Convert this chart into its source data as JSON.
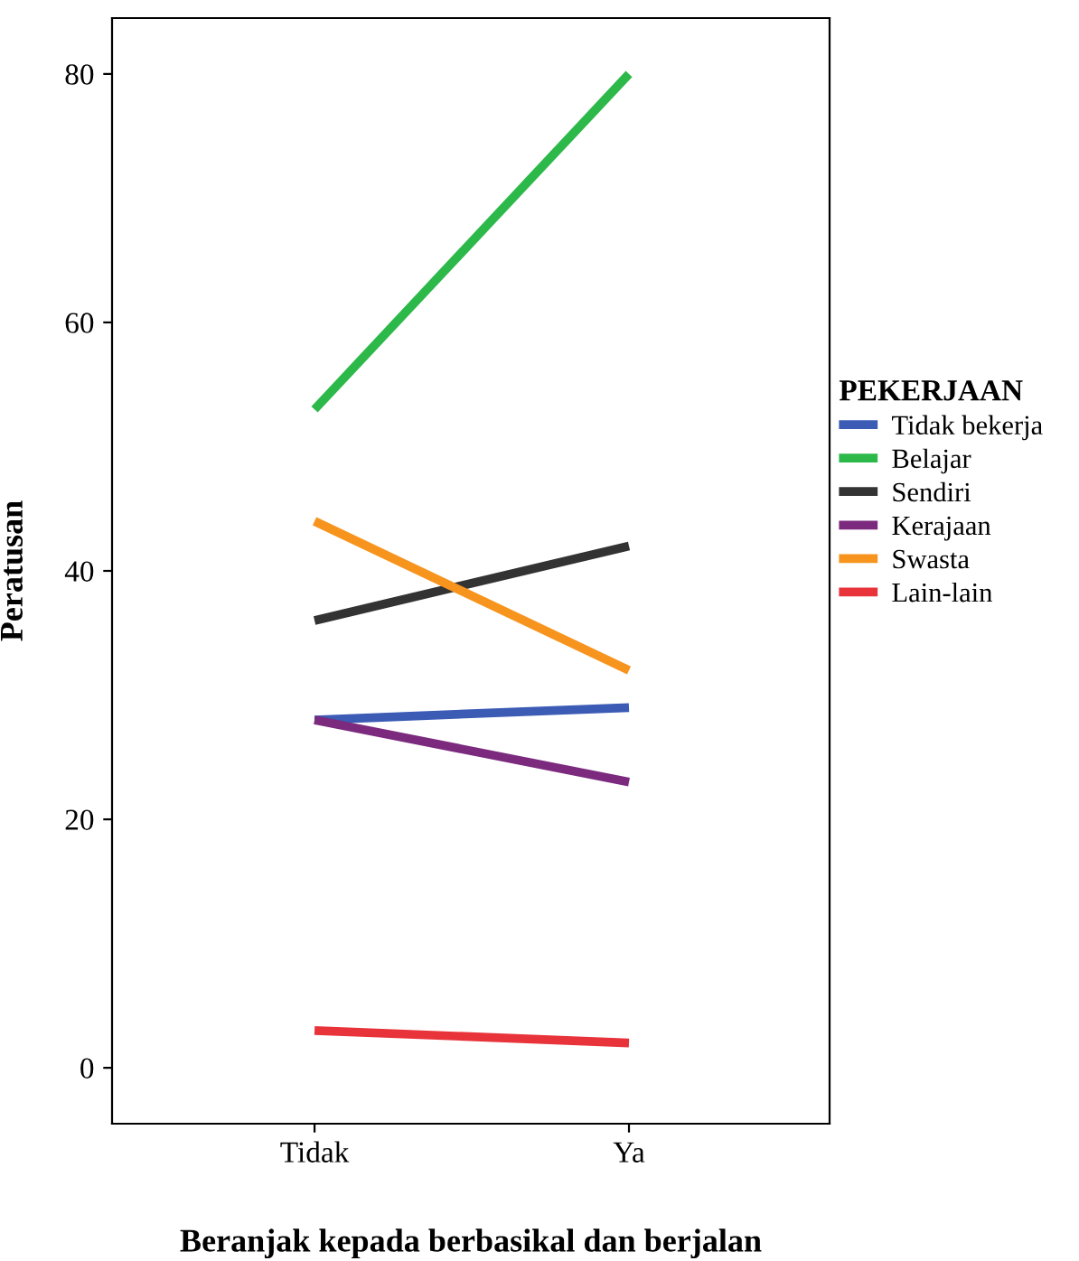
{
  "chart_data": {
    "type": "line",
    "xlabel": "Beranjak kepada berbasikal dan berjalan",
    "ylabel": "Peratusan",
    "legend_title": "PEKERJAAN",
    "legend": "right",
    "grid": false,
    "marker": "none",
    "line_style": "solid",
    "categories": [
      "Tidak",
      "Ya"
    ],
    "ylim": [
      -4.5,
      84.5
    ],
    "yticks": [
      0,
      20,
      40,
      60,
      80
    ],
    "series": [
      {
        "name": "Tidak bekerja",
        "color": "#3b5bb5",
        "values": [
          28,
          29
        ]
      },
      {
        "name": "Belajar",
        "color": "#2db84a",
        "values": [
          53,
          80
        ]
      },
      {
        "name": "Sendiri",
        "color": "#333333",
        "values": [
          36,
          42
        ]
      },
      {
        "name": "Kerajaan",
        "color": "#7b2a7e",
        "values": [
          28,
          23
        ]
      },
      {
        "name": "Swasta",
        "color": "#f7941d",
        "values": [
          44,
          32
        ]
      },
      {
        "name": "Lain-lain",
        "color": "#e8333a",
        "values": [
          3,
          2
        ]
      }
    ]
  }
}
